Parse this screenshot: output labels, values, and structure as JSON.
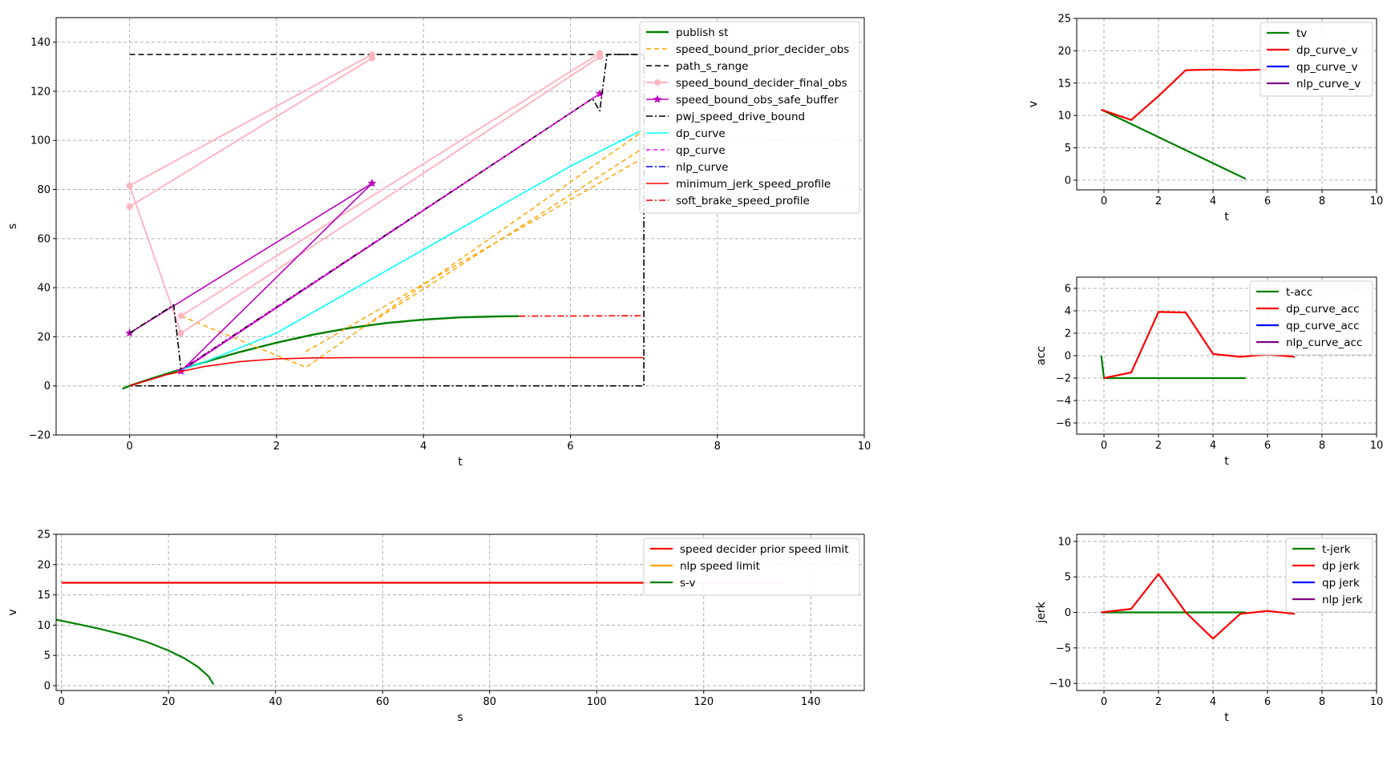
{
  "chart_data": [
    {
      "id": "st",
      "type": "line",
      "xlabel": "t",
      "ylabel": "s",
      "xlim": [
        -1,
        10
      ],
      "ylim": [
        -20,
        150
      ],
      "xticks": [
        0,
        2,
        4,
        6,
        8,
        10
      ],
      "yticks": [
        -20,
        0,
        20,
        40,
        60,
        80,
        100,
        120,
        140
      ],
      "grid": true,
      "legend": "top-right",
      "series": [
        {
          "name": "publish st",
          "color": "#008000",
          "dash": "",
          "width": 2.4,
          "x": [
            -0.1,
            0.0,
            0.3,
            0.6,
            1.0,
            1.5,
            2.0,
            2.5,
            3.0,
            3.5,
            4.0,
            4.5,
            5.0,
            5.3
          ],
          "y": [
            -1.2,
            0.0,
            3.0,
            5.8,
            9.5,
            13.8,
            17.6,
            20.9,
            23.6,
            25.6,
            27.0,
            27.9,
            28.3,
            28.4
          ]
        },
        {
          "name": "speed_bound_prior_decider_obs",
          "color": "#FFA500",
          "dash": "6 4",
          "width": 1.5,
          "segments": [
            {
              "x": [
                0.7,
                2.4,
                7.0
              ],
              "y": [
                28.5,
                7.5,
                104.0
              ]
            },
            {
              "x": [
                2.4,
                7.0
              ],
              "y": [
                14.0,
                93.0
              ]
            },
            {
              "x": [
                3.3,
                7.0
              ],
              "y": [
                26.0,
                97.0
              ]
            }
          ]
        },
        {
          "name": "path_s_range",
          "color": "#000000",
          "dash": "7 4",
          "width": 1.5,
          "x": [
            0.0,
            7.0
          ],
          "y": [
            135.0,
            135.0
          ]
        },
        {
          "name": "speed_bound_decider_final_obs",
          "color": "#FFB6C1",
          "dash": "",
          "width": 2,
          "marker": "circle",
          "segments": [
            {
              "x": [
                0.0,
                3.3
              ],
              "y": [
                81.5,
                135.0
              ]
            },
            {
              "x": [
                0.0,
                3.3
              ],
              "y": [
                73.0,
                133.5
              ]
            },
            {
              "x": [
                0.0,
                0.7
              ],
              "y": [
                81.5,
                21.5
              ]
            },
            {
              "x": [
                0.7,
                6.4
              ],
              "y": [
                28.5,
                135.5
              ]
            },
            {
              "x": [
                0.7,
                6.4
              ],
              "y": [
                21.5,
                134.0
              ]
            }
          ]
        },
        {
          "name": "speed_bound_obs_safe_buffer",
          "color": "#BF00BF",
          "dash": "",
          "width": 1.6,
          "marker": "star",
          "segments": [
            {
              "x": [
                0.0,
                3.3
              ],
              "y": [
                21.5,
                82.5
              ]
            },
            {
              "x": [
                0.7,
                3.3
              ],
              "y": [
                6.0,
                82.5
              ]
            },
            {
              "x": [
                0.7,
                6.4
              ],
              "y": [
                6.0,
                119.0
              ]
            }
          ]
        },
        {
          "name": "pwj_speed_drive_bound",
          "color": "#000000",
          "dash": "8 3 2 3",
          "width": 1.6,
          "segments": [
            {
              "x": [
                0.0,
                0.6,
                0.7,
                6.3,
                6.4,
                6.5,
                7.0
              ],
              "y": [
                21.5,
                33.0,
                6.5,
                117.0,
                112.0,
                135.0,
                135.0
              ]
            },
            {
              "x": [
                7.0,
                7.0,
                0.0
              ],
              "y": [
                135.0,
                0.0,
                0.0
              ]
            }
          ]
        },
        {
          "name": "dp_curve",
          "color": "#00FFFF",
          "dash": "",
          "width": 1.6,
          "x": [
            0.7,
            1.0,
            2.0,
            3.0,
            4.0,
            5.0,
            6.0,
            7.0
          ],
          "y": [
            6.5,
            9.5,
            21.5,
            38.5,
            55.5,
            72.5,
            89.5,
            104.5
          ]
        },
        {
          "name": "qp_curve",
          "color": "#FF00FF",
          "dash": "5 4",
          "width": 1.4,
          "x": [
            0.7,
            6.4
          ],
          "y": [
            6.5,
            119.0
          ]
        },
        {
          "name": "nlp_curve",
          "color": "#0000FF",
          "dash": "8 3 2 3",
          "width": 1.4,
          "x": [],
          "y": []
        },
        {
          "name": "minimum_jerk_speed_profile",
          "color": "#FF0000",
          "dash": "",
          "width": 1.6,
          "x": [
            0.0,
            0.5,
            1.0,
            1.5,
            2.0,
            2.5,
            3.0,
            4.0,
            5.0,
            6.0,
            7.0
          ],
          "y": [
            0.0,
            4.5,
            7.8,
            9.9,
            11.0,
            11.4,
            11.5,
            11.5,
            11.5,
            11.5,
            11.5
          ]
        },
        {
          "name": "soft_brake_speed_profile",
          "color": "#FF0000",
          "dash": "8 3 2 3",
          "width": 1.6,
          "x": [
            5.3,
            7.0
          ],
          "y": [
            28.4,
            28.6
          ]
        }
      ]
    },
    {
      "id": "tv",
      "type": "line",
      "xlabel": "t",
      "ylabel": "v",
      "xlim": [
        -1,
        10
      ],
      "ylim": [
        -1.5,
        25
      ],
      "xticks": [
        0,
        2,
        4,
        6,
        8,
        10
      ],
      "yticks": [
        0,
        5,
        10,
        15,
        20,
        25
      ],
      "grid": true,
      "legend": "top-right",
      "series": [
        {
          "name": "tv",
          "color": "#008000",
          "width": 2.2,
          "x": [
            -0.1,
            5.2
          ],
          "y": [
            10.9,
            0.2
          ]
        },
        {
          "name": "dp_curve_v",
          "color": "#FF0000",
          "width": 2.2,
          "x": [
            -0.1,
            1.0,
            2.0,
            3.0,
            4.0,
            5.0,
            6.0
          ],
          "y": [
            10.9,
            9.3,
            13.0,
            17.0,
            17.1,
            17.0,
            17.1
          ]
        },
        {
          "name": "qp_curve_v",
          "color": "#0000FF",
          "width": 2.2,
          "x": [],
          "y": []
        },
        {
          "name": "nlp_curve_v",
          "color": "#800080",
          "width": 2.2,
          "x": [],
          "y": []
        }
      ]
    },
    {
      "id": "acc",
      "type": "line",
      "xlabel": "t",
      "ylabel": "acc",
      "xlim": [
        -1,
        10
      ],
      "ylim": [
        -7,
        7
      ],
      "xticks": [
        0,
        2,
        4,
        6,
        8,
        10
      ],
      "yticks": [
        -6,
        -4,
        -2,
        0,
        2,
        4,
        6
      ],
      "grid": true,
      "legend": "top-right",
      "series": [
        {
          "name": "t-acc",
          "color": "#008000",
          "width": 2.2,
          "x": [
            -0.1,
            0.0,
            5.2
          ],
          "y": [
            0.0,
            -2.0,
            -2.0
          ]
        },
        {
          "name": "dp_curve_acc",
          "color": "#FF0000",
          "width": 2.2,
          "x": [
            0.0,
            1.0,
            2.0,
            3.0,
            4.0,
            5.0,
            6.0,
            7.0
          ],
          "y": [
            -2.0,
            -1.5,
            3.9,
            3.85,
            0.15,
            -0.1,
            0.1,
            -0.1
          ]
        },
        {
          "name": "qp_curve_acc",
          "color": "#0000FF",
          "width": 2.2,
          "x": [],
          "y": []
        },
        {
          "name": "nlp_curve_acc",
          "color": "#800080",
          "width": 2.2,
          "x": [],
          "y": []
        }
      ]
    },
    {
      "id": "sv",
      "type": "line",
      "xlabel": "s",
      "ylabel": "v",
      "xlim": [
        -1,
        150
      ],
      "ylim": [
        -0.8,
        25
      ],
      "xticks": [
        0,
        20,
        40,
        60,
        80,
        100,
        120,
        140
      ],
      "yticks": [
        0,
        5,
        10,
        15,
        20,
        25
      ],
      "grid": true,
      "legend": "top-right",
      "series": [
        {
          "name": "speed decider prior speed limit",
          "color": "#FF0000",
          "width": 2.2,
          "x": [
            0,
            110
          ],
          "y": [
            17.0,
            17.0
          ]
        },
        {
          "name": "nlp speed limit",
          "color": "#FFA500",
          "width": 2.2,
          "x": [],
          "y": []
        },
        {
          "name": "s-v",
          "color": "#008000",
          "width": 2.2,
          "x": [
            -1.0,
            4.0,
            8.0,
            12.0,
            16.0,
            20.0,
            23.0,
            25.5,
            27.5,
            28.4
          ],
          "y": [
            10.9,
            10.0,
            9.2,
            8.3,
            7.2,
            5.8,
            4.5,
            3.1,
            1.5,
            0.2
          ]
        },
        {
          "name": "",
          "color": "#FFB6C1",
          "width": 2.2,
          "x": [
            110,
            135
          ],
          "y": [
            17.0,
            17.0
          ]
        }
      ]
    },
    {
      "id": "jerk",
      "type": "line",
      "xlabel": "t",
      "ylabel": "jerk",
      "xlim": [
        -1,
        10
      ],
      "ylim": [
        -11,
        11
      ],
      "xticks": [
        0,
        2,
        4,
        6,
        8,
        10
      ],
      "yticks": [
        -10,
        -5,
        0,
        5,
        10
      ],
      "grid": true,
      "legend": "top-right",
      "series": [
        {
          "name": "t-jerk",
          "color": "#008000",
          "width": 2.2,
          "x": [
            -0.1,
            5.2
          ],
          "y": [
            0.0,
            0.0
          ]
        },
        {
          "name": "dp jerk",
          "color": "#FF0000",
          "width": 2.2,
          "x": [
            -0.1,
            1.0,
            2.0,
            3.0,
            4.0,
            5.0,
            6.0,
            7.0
          ],
          "y": [
            0.0,
            0.5,
            5.4,
            0.0,
            -3.7,
            -0.2,
            0.2,
            -0.2
          ]
        },
        {
          "name": "qp jerk",
          "color": "#0000FF",
          "width": 2.2,
          "x": [],
          "y": []
        },
        {
          "name": "nlp jerk",
          "color": "#800080",
          "width": 2.2,
          "x": [],
          "y": []
        }
      ]
    }
  ]
}
